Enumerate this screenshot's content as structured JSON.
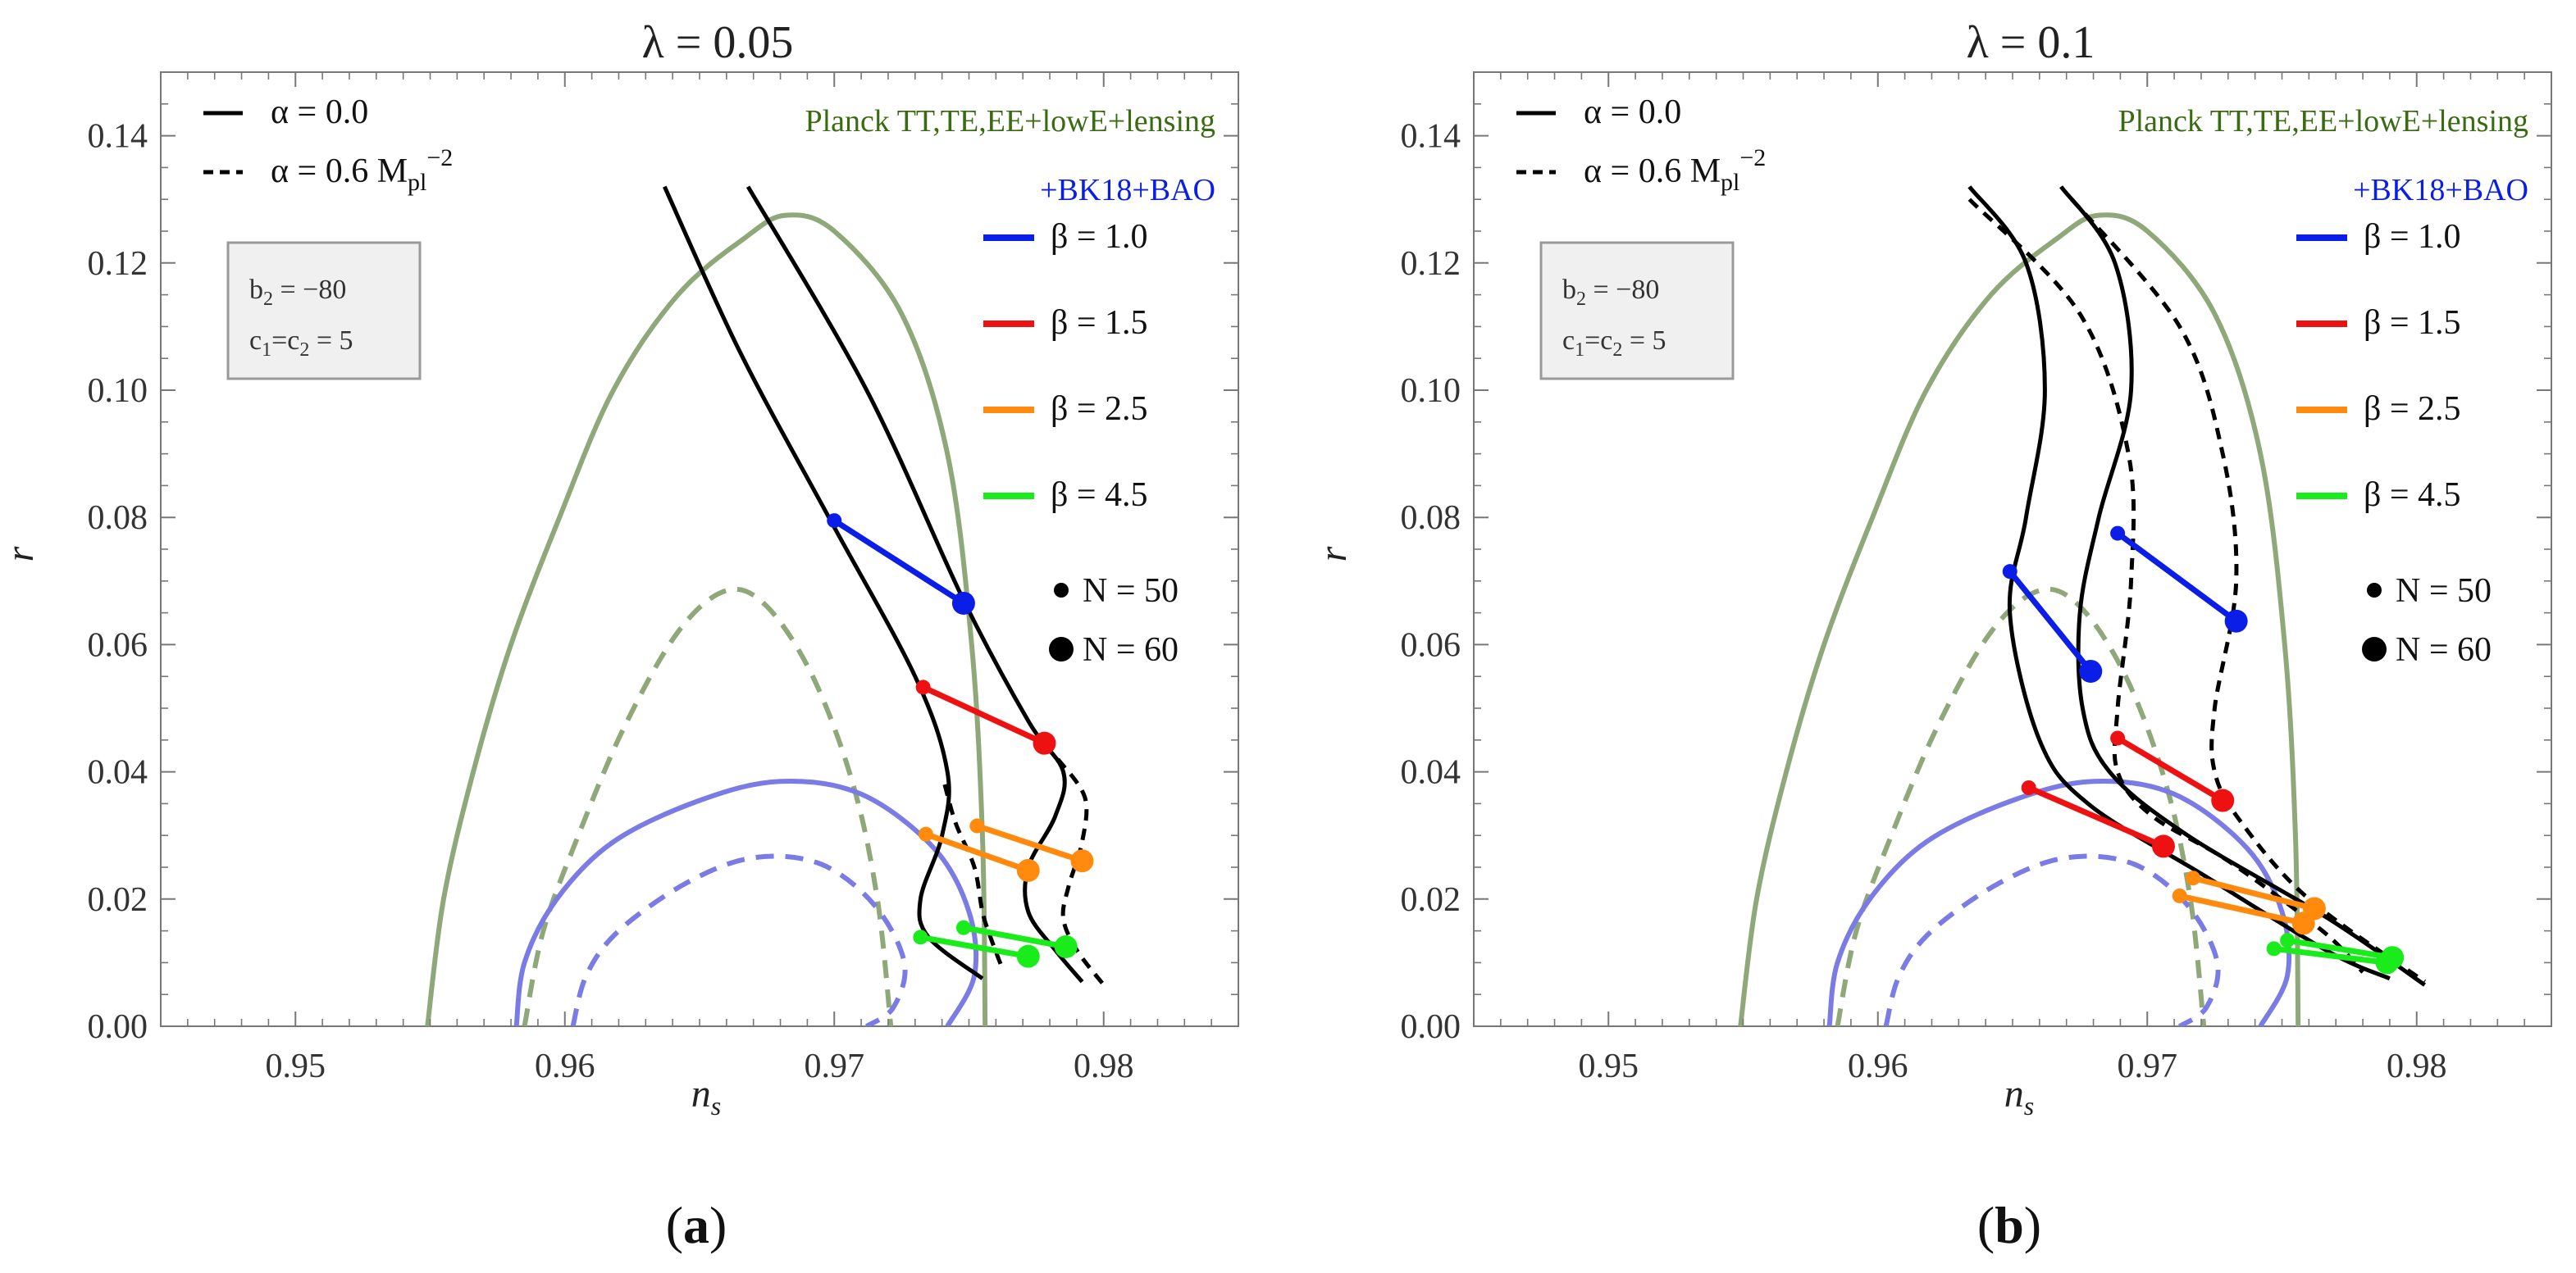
{
  "chart_data": [
    {
      "panel": "a",
      "caption": "(a)",
      "type": "line",
      "title": "λ  = 0.05",
      "xlabel": "n_s",
      "ylabel": "r",
      "xlim": [
        0.945,
        0.985
      ],
      "ylim": [
        0.0,
        0.15
      ],
      "xticks": [
        "0.95",
        "0.96",
        "0.97",
        "0.98"
      ],
      "yticks": [
        "0.00",
        "0.02",
        "0.04",
        "0.06",
        "0.08",
        "0.10",
        "0.12",
        "0.14"
      ],
      "legend": {
        "alpha_solid": "α = 0.0",
        "alpha_dashed": "α = 0.6 M",
        "alpha_dashed_sub": "pl",
        "alpha_dashed_sup": "−2",
        "planck": "Planck TT,TE,EE+lowE+lensing",
        "bk": "+BK18+BAO",
        "betas": [
          {
            "label": "β = 1.0",
            "color": "#0a1ee8"
          },
          {
            "label": "β = 1.5",
            "color": "#ee1111"
          },
          {
            "label": "β = 2.5",
            "color": "#ff8a0d"
          },
          {
            "label": "β = 4.5",
            "color": "#1aeb1a"
          }
        ],
        "n50": "N = 50",
        "n60": "N = 60"
      },
      "param_box": [
        "b",
        "2",
        " = −80",
        "c",
        "1",
        "=c",
        "2",
        " = 5"
      ],
      "contours": [
        {
          "name": "planck-95",
          "color": "#8fa879",
          "dashed": false,
          "points": [
            [
              0.9549,
              0.0
            ],
            [
              0.9555,
              0.02
            ],
            [
              0.9566,
              0.04
            ],
            [
              0.958,
              0.06
            ],
            [
              0.9598,
              0.08
            ],
            [
              0.9618,
              0.1
            ],
            [
              0.9642,
              0.115
            ],
            [
              0.9667,
              0.124
            ],
            [
              0.9682,
              0.1275
            ],
            [
              0.97,
              0.125
            ],
            [
              0.9725,
              0.112
            ],
            [
              0.9742,
              0.09
            ],
            [
              0.9751,
              0.06
            ],
            [
              0.9755,
              0.03
            ],
            [
              0.9756,
              0.0
            ]
          ]
        },
        {
          "name": "planck-68",
          "color": "#8fa879",
          "dashed": true,
          "points": [
            [
              0.9585,
              0.0
            ],
            [
              0.9592,
              0.015
            ],
            [
              0.9605,
              0.03
            ],
            [
              0.9622,
              0.047
            ],
            [
              0.9642,
              0.062
            ],
            [
              0.966,
              0.0685
            ],
            [
              0.9675,
              0.066
            ],
            [
              0.9692,
              0.055
            ],
            [
              0.9707,
              0.038
            ],
            [
              0.9716,
              0.02
            ],
            [
              0.9721,
              0.0
            ]
          ]
        },
        {
          "name": "bk-95",
          "color": "#7b7be6",
          "dashed": false,
          "points": [
            [
              0.9582,
              0.0
            ],
            [
              0.9585,
              0.01
            ],
            [
              0.9597,
              0.02
            ],
            [
              0.9618,
              0.029
            ],
            [
              0.965,
              0.0355
            ],
            [
              0.968,
              0.0385
            ],
            [
              0.971,
              0.0365
            ],
            [
              0.9737,
              0.028
            ],
            [
              0.975,
              0.018
            ],
            [
              0.9752,
              0.008
            ],
            [
              0.9742,
              0.0
            ]
          ]
        },
        {
          "name": "bk-68",
          "color": "#7b7be6",
          "dashed": true,
          "points": [
            [
              0.9603,
              0.0
            ],
            [
              0.9608,
              0.008
            ],
            [
              0.962,
              0.015
            ],
            [
              0.9645,
              0.0225
            ],
            [
              0.967,
              0.0265
            ],
            [
              0.9695,
              0.0255
            ],
            [
              0.9715,
              0.019
            ],
            [
              0.9726,
              0.01
            ],
            [
              0.9722,
              0.003
            ],
            [
              0.9712,
              0.0
            ]
          ]
        }
      ],
      "curves": [
        {
          "name": "solid-left",
          "dashed": false,
          "points": [
            [
              0.9637,
              0.132
            ],
            [
              0.9665,
              0.106
            ],
            [
              0.9698,
              0.08
            ],
            [
              0.973,
              0.055
            ],
            [
              0.9742,
              0.04
            ],
            [
              0.974,
              0.03
            ],
            [
              0.9732,
              0.02
            ],
            [
              0.9735,
              0.014
            ],
            [
              0.9755,
              0.0075
            ]
          ]
        },
        {
          "name": "solid-right",
          "dashed": false,
          "points": [
            [
              0.9668,
              0.132
            ],
            [
              0.9712,
              0.1
            ],
            [
              0.9748,
              0.067
            ],
            [
              0.9772,
              0.048
            ],
            [
              0.9785,
              0.04
            ],
            [
              0.9782,
              0.033
            ],
            [
              0.9772,
              0.025
            ],
            [
              0.9772,
              0.018
            ],
            [
              0.9782,
              0.012
            ],
            [
              0.9792,
              0.007
            ]
          ]
        },
        {
          "name": "dashed-left",
          "dashed": true,
          "points": [
            [
              0.9741,
              0.038
            ],
            [
              0.9745,
              0.032
            ],
            [
              0.9752,
              0.025
            ],
            [
              0.9755,
              0.018
            ],
            [
              0.9758,
              0.014
            ],
            [
              0.9762,
              0.0095
            ]
          ]
        },
        {
          "name": "dashed-right",
          "dashed": true,
          "points": [
            [
              0.9783,
              0.042
            ],
            [
              0.9793,
              0.036
            ],
            [
              0.9792,
              0.029
            ],
            [
              0.9787,
              0.022
            ],
            [
              0.9785,
              0.017
            ],
            [
              0.979,
              0.012
            ],
            [
              0.98,
              0.0065
            ]
          ]
        }
      ],
      "segments": [
        {
          "beta": "1.0",
          "color": "#0a1ee8",
          "dashed": false,
          "n50": [
            0.97,
            0.0795
          ],
          "n60": [
            0.9748,
            0.0665
          ]
        },
        {
          "beta": "1.5",
          "color": "#ee1111",
          "dashed": false,
          "n50": [
            0.9733,
            0.0533
          ],
          "n60": [
            0.9778,
            0.0445
          ]
        },
        {
          "beta": "2.5",
          "color": "#ff8a0d",
          "dashed": false,
          "n50": [
            0.9734,
            0.0302
          ],
          "n60": [
            0.9772,
            0.0245
          ]
        },
        {
          "beta": "2.5",
          "color": "#ff8a0d",
          "dashed": true,
          "n50": [
            0.9753,
            0.0315
          ],
          "n60": [
            0.9792,
            0.026
          ]
        },
        {
          "beta": "4.5",
          "color": "#1aeb1a",
          "dashed": false,
          "n50": [
            0.9732,
            0.014
          ],
          "n60": [
            0.9772,
            0.011
          ]
        },
        {
          "beta": "4.5",
          "color": "#1aeb1a",
          "dashed": true,
          "n50": [
            0.9748,
            0.0155
          ],
          "n60": [
            0.9786,
            0.0125
          ]
        }
      ]
    },
    {
      "panel": "b",
      "caption": "(b)",
      "type": "line",
      "title": "λ  = 0.1",
      "xlabel": "n_s",
      "ylabel": "r",
      "xlim": [
        0.945,
        0.985
      ],
      "ylim": [
        0.0,
        0.15
      ],
      "xticks": [
        "0.95",
        "0.96",
        "0.97",
        "0.98"
      ],
      "yticks": [
        "0.00",
        "0.02",
        "0.04",
        "0.06",
        "0.08",
        "0.10",
        "0.12",
        "0.14"
      ],
      "legend": {
        "alpha_solid": "α = 0.0",
        "alpha_dashed": "α = 0.6 M",
        "alpha_dashed_sub": "pl",
        "alpha_dashed_sup": "−2",
        "planck": "Planck TT,TE,EE+lowE+lensing",
        "bk": "+BK18+BAO",
        "betas": [
          {
            "label": "β = 1.0",
            "color": "#0a1ee8"
          },
          {
            "label": "β = 1.5",
            "color": "#ee1111"
          },
          {
            "label": "β = 2.5",
            "color": "#ff8a0d"
          },
          {
            "label": "β = 4.5",
            "color": "#1aeb1a"
          }
        ],
        "n50": "N = 50",
        "n60": "N = 60"
      },
      "param_box": [
        "b",
        "2",
        " = −80",
        "c",
        "1",
        "=c",
        "2",
        " = 5"
      ],
      "contours": [
        {
          "name": "planck-95",
          "color": "#8fa879",
          "dashed": false,
          "points": [
            [
              0.9549,
              0.0
            ],
            [
              0.9555,
              0.02
            ],
            [
              0.9566,
              0.04
            ],
            [
              0.958,
              0.06
            ],
            [
              0.9598,
              0.08
            ],
            [
              0.9618,
              0.1
            ],
            [
              0.9642,
              0.115
            ],
            [
              0.9667,
              0.124
            ],
            [
              0.9682,
              0.1275
            ],
            [
              0.97,
              0.125
            ],
            [
              0.9725,
              0.112
            ],
            [
              0.9742,
              0.09
            ],
            [
              0.9751,
              0.06
            ],
            [
              0.9755,
              0.03
            ],
            [
              0.9756,
              0.0
            ]
          ]
        },
        {
          "name": "planck-68",
          "color": "#8fa879",
          "dashed": true,
          "points": [
            [
              0.9585,
              0.0
            ],
            [
              0.9592,
              0.015
            ],
            [
              0.9605,
              0.03
            ],
            [
              0.9622,
              0.047
            ],
            [
              0.9642,
              0.062
            ],
            [
              0.966,
              0.0685
            ],
            [
              0.9675,
              0.066
            ],
            [
              0.9692,
              0.055
            ],
            [
              0.9707,
              0.038
            ],
            [
              0.9716,
              0.02
            ],
            [
              0.9721,
              0.0
            ]
          ]
        },
        {
          "name": "bk-95",
          "color": "#7b7be6",
          "dashed": false,
          "points": [
            [
              0.9582,
              0.0
            ],
            [
              0.9585,
              0.01
            ],
            [
              0.9597,
              0.02
            ],
            [
              0.9618,
              0.029
            ],
            [
              0.965,
              0.0355
            ],
            [
              0.968,
              0.0385
            ],
            [
              0.971,
              0.0365
            ],
            [
              0.9737,
              0.028
            ],
            [
              0.975,
              0.018
            ],
            [
              0.9752,
              0.008
            ],
            [
              0.9742,
              0.0
            ]
          ]
        },
        {
          "name": "bk-68",
          "color": "#7b7be6",
          "dashed": true,
          "points": [
            [
              0.9603,
              0.0
            ],
            [
              0.9608,
              0.008
            ],
            [
              0.962,
              0.015
            ],
            [
              0.9645,
              0.0225
            ],
            [
              0.967,
              0.0265
            ],
            [
              0.9695,
              0.0255
            ],
            [
              0.9715,
              0.019
            ],
            [
              0.9726,
              0.01
            ],
            [
              0.9722,
              0.003
            ],
            [
              0.9712,
              0.0
            ]
          ]
        }
      ],
      "curves": [
        {
          "name": "solid-left",
          "dashed": false,
          "points": [
            [
              0.9634,
              0.132
            ],
            [
              0.9655,
              0.12
            ],
            [
              0.9662,
              0.1
            ],
            [
              0.9655,
              0.08
            ],
            [
              0.9649,
              0.065
            ],
            [
              0.966,
              0.045
            ],
            [
              0.9678,
              0.035
            ],
            [
              0.972,
              0.024
            ],
            [
              0.9767,
              0.0118
            ],
            [
              0.979,
              0.0075
            ]
          ]
        },
        {
          "name": "solid-right",
          "dashed": false,
          "points": [
            [
              0.9668,
              0.132
            ],
            [
              0.9688,
              0.12
            ],
            [
              0.9694,
              0.1
            ],
            [
              0.9682,
              0.08
            ],
            [
              0.9675,
              0.065
            ],
            [
              0.9676,
              0.05
            ],
            [
              0.9686,
              0.04
            ],
            [
              0.9715,
              0.03
            ],
            [
              0.9767,
              0.017
            ],
            [
              0.9803,
              0.0065
            ]
          ]
        },
        {
          "name": "dashed-left",
          "dashed": true,
          "points": [
            [
              0.9634,
              0.13
            ],
            [
              0.9675,
              0.112
            ],
            [
              0.9693,
              0.09
            ],
            [
              0.9694,
              0.07
            ],
            [
              0.9689,
              0.05
            ],
            [
              0.9689,
              0.04
            ],
            [
              0.9702,
              0.033
            ],
            [
              0.973,
              0.026
            ],
            [
              0.9765,
              0.015
            ],
            [
              0.978,
              0.0085
            ]
          ]
        },
        {
          "name": "dashed-right",
          "dashed": true,
          "points": [
            [
              0.9672,
              0.13
            ],
            [
              0.9712,
              0.11
            ],
            [
              0.9728,
              0.09
            ],
            [
              0.9733,
              0.07
            ],
            [
              0.9725,
              0.05
            ],
            [
              0.9725,
              0.04
            ],
            [
              0.9735,
              0.032
            ],
            [
              0.976,
              0.02
            ],
            [
              0.9803,
              0.007
            ]
          ]
        }
      ],
      "segments": [
        {
          "beta": "1.0",
          "color": "#0a1ee8",
          "dashed": false,
          "n50": [
            0.9649,
            0.0715
          ],
          "n60": [
            0.9679,
            0.0558
          ]
        },
        {
          "beta": "1.0",
          "color": "#0a1ee8",
          "dashed": true,
          "n50": [
            0.9689,
            0.0775
          ],
          "n60": [
            0.9733,
            0.0637
          ]
        },
        {
          "beta": "1.5",
          "color": "#ee1111",
          "dashed": false,
          "n50": [
            0.9656,
            0.0375
          ],
          "n60": [
            0.9706,
            0.0283
          ]
        },
        {
          "beta": "1.5",
          "color": "#ee1111",
          "dashed": true,
          "n50": [
            0.9689,
            0.0453
          ],
          "n60": [
            0.9728,
            0.0355
          ]
        },
        {
          "beta": "2.5",
          "color": "#ff8a0d",
          "dashed": false,
          "n50": [
            0.9712,
            0.0205
          ],
          "n60": [
            0.9758,
            0.0162
          ]
        },
        {
          "beta": "2.5",
          "color": "#ff8a0d",
          "dashed": true,
          "n50": [
            0.9717,
            0.0233
          ],
          "n60": [
            0.9762,
            0.0185
          ]
        },
        {
          "beta": "4.5",
          "color": "#1aeb1a",
          "dashed": false,
          "n50": [
            0.9747,
            0.0122
          ],
          "n60": [
            0.9789,
            0.01
          ]
        },
        {
          "beta": "4.5",
          "color": "#1aeb1a",
          "dashed": true,
          "n50": [
            0.9752,
            0.0135
          ],
          "n60": [
            0.9791,
            0.0108
          ]
        }
      ]
    }
  ]
}
